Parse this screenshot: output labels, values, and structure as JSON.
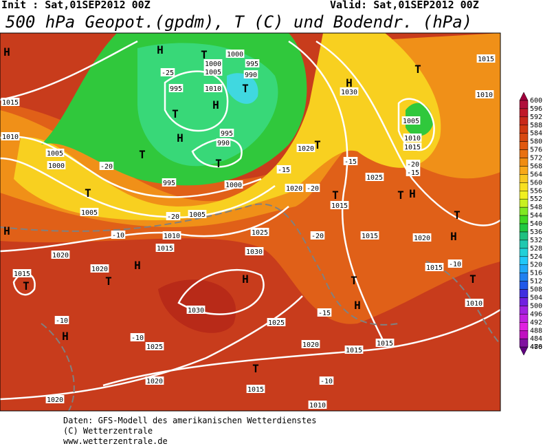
{
  "header": {
    "init": "Init : Sat,01SEP2012 00Z",
    "valid": "Valid: Sat,01SEP2012 00Z",
    "title": "500 hPa Geopot.(gpdm), T (C) und Bodendr. (hPa)"
  },
  "map": {
    "labels": [
      "H",
      "1015",
      "1010",
      "1005",
      "1000",
      "T",
      "1005",
      "H",
      "1020",
      "1015",
      "T",
      "1020",
      "T",
      "H",
      "-10",
      "H",
      "-10",
      "1030",
      "H",
      "1025",
      "1020",
      "1020",
      "T",
      "1015",
      "1025",
      "1020",
      "1015",
      "1015",
      "1010",
      "-10",
      "1030",
      "1025",
      "1015",
      "1010",
      "-10",
      "-20",
      "1005",
      "1000",
      "995",
      "T",
      "990",
      "995",
      "H",
      "T",
      "-20",
      "995",
      "T",
      "H",
      "1010",
      "1005",
      "1000",
      "T",
      "990",
      "995",
      "1000",
      "T",
      "H",
      "-25",
      "1030",
      "H",
      "T",
      "1015",
      "1010",
      "1005",
      "1010",
      "1015",
      "-20",
      "-15",
      "1025",
      "T",
      "H",
      "T",
      "H",
      "1015",
      "1020",
      "T",
      "H",
      "1015",
      "-10",
      "T",
      "1010",
      "-15",
      "T",
      "1020",
      "1020",
      "-20",
      "T",
      "1015",
      "-20",
      "-15",
      "-15"
    ]
  },
  "colorbar": {
    "levels": [
      600,
      596,
      592,
      588,
      584,
      580,
      576,
      572,
      568,
      564,
      560,
      556,
      552,
      548,
      544,
      540,
      536,
      532,
      528,
      524,
      520,
      516,
      512,
      508,
      504,
      500,
      496,
      492,
      488,
      484,
      480,
      476
    ],
    "colors": [
      "#a0003c",
      "#b0103a",
      "#c01828",
      "#c82818",
      "#d03810",
      "#d84810",
      "#e05810",
      "#e87010",
      "#f08c10",
      "#f8a818",
      "#f8c820",
      "#f8e020",
      "#f0f020",
      "#c8f020",
      "#80e820",
      "#40d820",
      "#20c840",
      "#20c080",
      "#20c8b0",
      "#20d0d8",
      "#20c8f8",
      "#20a8f8",
      "#2080f0",
      "#2058e8",
      "#4030e0",
      "#7020e0",
      "#a020e0",
      "#c020e0",
      "#e020e0",
      "#c010c0",
      "#8010a0",
      "#600080"
    ]
  },
  "footer": [
    "Daten: GFS-Modell des amerikanischen Wetterdienstes",
    "(C) Wetterzentrale",
    "www.wetterzentrale.de"
  ]
}
